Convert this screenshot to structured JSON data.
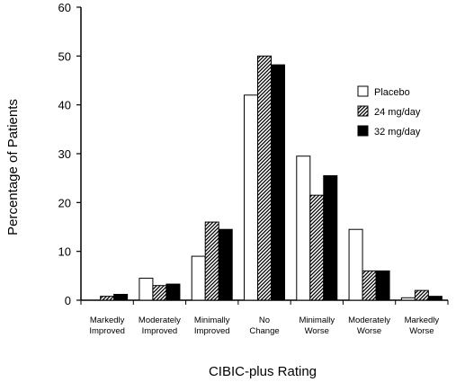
{
  "chart_data": {
    "type": "bar",
    "title": "",
    "xlabel": "CIBIC-plus Rating",
    "ylabel": "Percentage  of Patients",
    "ylim": [
      0,
      60
    ],
    "yticks": [
      0,
      10,
      20,
      30,
      40,
      50,
      60
    ],
    "grid": false,
    "legend_position": "right",
    "categories": [
      [
        "Markedly",
        "Improved"
      ],
      [
        "Moderately",
        "Improved"
      ],
      [
        "Minimally",
        "Improved"
      ],
      [
        "No",
        "Change"
      ],
      [
        "Minimally",
        "Worse"
      ],
      [
        "Moderately",
        "Worse"
      ],
      [
        "Markedly",
        "Worse"
      ]
    ],
    "series": [
      {
        "name": "Placebo",
        "values": [
          0,
          4.5,
          9,
          42,
          29.5,
          14.5,
          0.5
        ],
        "fill": "white",
        "color": "#ffffff"
      },
      {
        "name": "24 mg/day",
        "values": [
          0.8,
          3,
          16,
          50,
          21.5,
          6,
          2
        ],
        "fill": "hatch",
        "color": "#555555"
      },
      {
        "name": "32 mg/day",
        "values": [
          1.2,
          3.3,
          14.5,
          48.2,
          25.5,
          6,
          0.8
        ],
        "fill": "black",
        "color": "#000000"
      }
    ]
  }
}
